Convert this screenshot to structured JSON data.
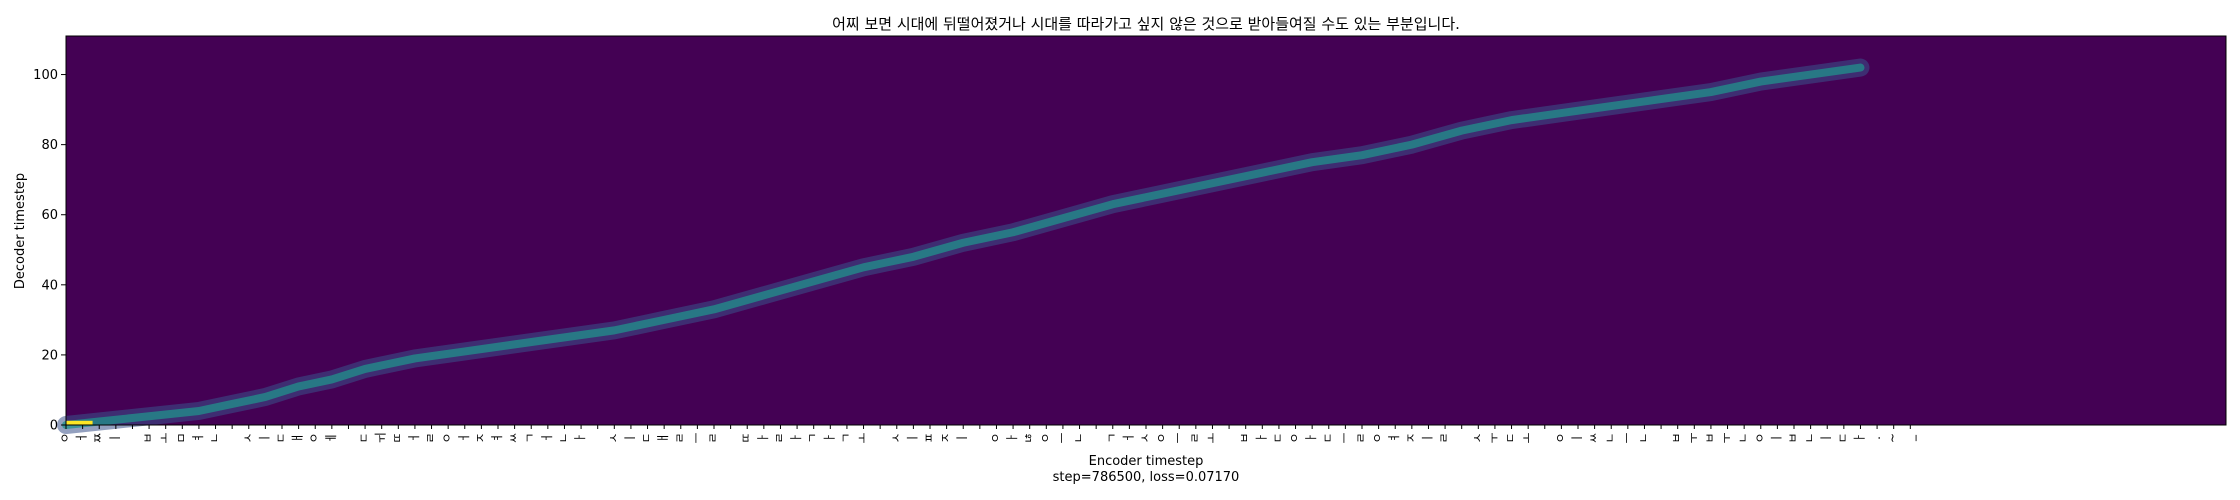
{
  "chart_data": {
    "type": "heatmap",
    "title": "어찌 보면 시대에 뒤떨어졌거나 시대를 따라가고 싶지 않은 것으로 받아들여질 수도 있는 부분입니다.",
    "xlabel": "Encoder timestep",
    "ylabel": "Decoder timestep",
    "info": "step=786500, loss=0.07170",
    "xlim": [
      0,
      130
    ],
    "ylim": [
      0,
      111
    ],
    "yticks": [
      0,
      20,
      40,
      60,
      80,
      100
    ],
    "x_tick_labels": [
      "ㅇ",
      "ㅓ",
      "ㅉ",
      "ㅣ",
      "",
      "ㅂ",
      "ㅗ",
      "ㅁ",
      "ㅕ",
      "ㄴ",
      "",
      "ㅅ",
      "ㅣ",
      "ㄷ",
      "ㅐ",
      "ㅇ",
      "ㅔ",
      "",
      "ㄷ",
      "ㅟ",
      "ㄸ",
      "ㅓ",
      "ㄹ",
      "ㅇ",
      "ㅓ",
      "ㅈ",
      "ㅕ",
      "ㅆ",
      "ㄱ",
      "ㅓ",
      "ㄴ",
      "ㅏ",
      "",
      "ㅅ",
      "ㅣ",
      "ㄷ",
      "ㅐ",
      "ㄹ",
      "ㅡ",
      "ㄹ",
      "",
      "ㄸ",
      "ㅏ",
      "ㄹ",
      "ㅏ",
      "ㄱ",
      "ㅏ",
      "ㄱ",
      "ㅗ",
      "",
      "ㅅ",
      "ㅣ",
      "ㅍ",
      "ㅈ",
      "ㅣ",
      "",
      "ㅇ",
      "ㅏ",
      "ㄶ",
      "ㅇ",
      "ㅡ",
      "ㄴ",
      "",
      "ㄱ",
      "ㅓ",
      "ㅅ",
      "ㅇ",
      "ㅡ",
      "ㄹ",
      "ㅗ",
      "",
      "ㅂ",
      "ㅏ",
      "ㄷ",
      "ㅇ",
      "ㅏ",
      "ㄷ",
      "ㅡ",
      "ㄹ",
      "ㅇ",
      "ㅕ",
      "ㅈ",
      "ㅣ",
      "ㄹ",
      "",
      "ㅅ",
      "ㅜ",
      "ㄷ",
      "ㅗ",
      "",
      "ㅇ",
      "ㅣ",
      "ㅆ",
      "ㄴ",
      "ㅡ",
      "ㄴ",
      "",
      "ㅂ",
      "ㅜ",
      "ㅂ",
      "ㅜ",
      "ㄴ",
      "ㅇ",
      "ㅣ",
      "ㅂ",
      "ㄴ",
      "ㅣ",
      "ㄷ",
      "ㅏ",
      ".",
      "~",
      "_"
    ],
    "alignment_path": [
      [
        0,
        0
      ],
      [
        2,
        1
      ],
      [
        4,
        2
      ],
      [
        6,
        3
      ],
      [
        8,
        4
      ],
      [
        10,
        6
      ],
      [
        12,
        8
      ],
      [
        14,
        11
      ],
      [
        16,
        13
      ],
      [
        18,
        16
      ],
      [
        21,
        19
      ],
      [
        24,
        21
      ],
      [
        27,
        23
      ],
      [
        30,
        25
      ],
      [
        33,
        27
      ],
      [
        36,
        30
      ],
      [
        39,
        33
      ],
      [
        42,
        37
      ],
      [
        45,
        41
      ],
      [
        48,
        45
      ],
      [
        51,
        48
      ],
      [
        54,
        52
      ],
      [
        57,
        55
      ],
      [
        60,
        59
      ],
      [
        63,
        63
      ],
      [
        66,
        66
      ],
      [
        69,
        69
      ],
      [
        72,
        72
      ],
      [
        75,
        75
      ],
      [
        78,
        77
      ],
      [
        81,
        80
      ],
      [
        84,
        84
      ],
      [
        87,
        87
      ],
      [
        90,
        89
      ],
      [
        93,
        91
      ],
      [
        96,
        93
      ],
      [
        99,
        95
      ],
      [
        102,
        98
      ],
      [
        105,
        100
      ],
      [
        108,
        102
      ]
    ],
    "colormap": "viridis",
    "colors": {
      "background": "#440154",
      "low": "#3b528b",
      "mid": "#21918c",
      "high": "#fde725"
    }
  }
}
